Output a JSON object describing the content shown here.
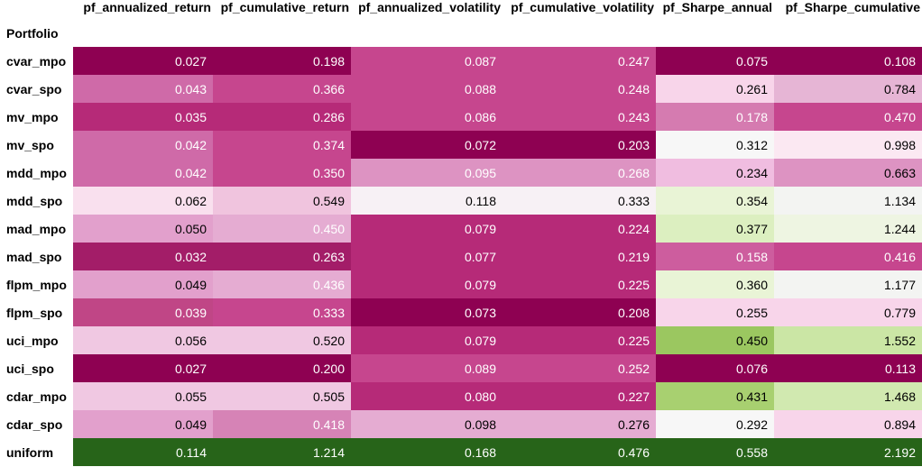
{
  "table": {
    "index_header": "Portfolio",
    "columns": [
      "pf_annualized_return",
      "pf_cumulative_return",
      "pf_annualized_volatility",
      "pf_cumulative_volatility",
      "pf_Sharpe_annual",
      "pf_Sharpe_cumulative"
    ],
    "rows": [
      {
        "name": "cvar_mpo",
        "values": [
          "0.027",
          "0.198",
          "0.087",
          "0.247",
          "0.075",
          "0.108"
        ],
        "colors": [
          "#8e0152",
          "#8e0152",
          "#c6468e",
          "#c6468e",
          "#8e0152",
          "#8e0152"
        ],
        "text": [
          "#fff",
          "#fff",
          "#fff",
          "#fff",
          "#fff",
          "#fff"
        ]
      },
      {
        "name": "cvar_spo",
        "values": [
          "0.043",
          "0.366",
          "0.088",
          "0.248",
          "0.261",
          "0.784"
        ],
        "colors": [
          "#cf6aa8",
          "#c6468e",
          "#c6468e",
          "#c6468e",
          "#f8d5ea",
          "#e6b5d5"
        ],
        "text": [
          "#fff",
          "#fff",
          "#fff",
          "#fff",
          "#000",
          "#000"
        ]
      },
      {
        "name": "mv_mpo",
        "values": [
          "0.035",
          "0.286",
          "0.086",
          "0.243",
          "0.178",
          "0.470"
        ],
        "colors": [
          "#b62a78",
          "#b62a78",
          "#c6468e",
          "#c6468e",
          "#d57bb0",
          "#c6468e"
        ],
        "text": [
          "#fff",
          "#fff",
          "#fff",
          "#fff",
          "#fff",
          "#fff"
        ]
      },
      {
        "name": "mv_spo",
        "values": [
          "0.042",
          "0.374",
          "0.072",
          "0.203",
          "0.312",
          "0.998"
        ],
        "colors": [
          "#cf6aa8",
          "#c6468e",
          "#8e0152",
          "#8e0152",
          "#f7f7f7",
          "#fbe8f2"
        ],
        "text": [
          "#fff",
          "#fff",
          "#fff",
          "#fff",
          "#000",
          "#000"
        ]
      },
      {
        "name": "mdd_mpo",
        "values": [
          "0.042",
          "0.350",
          "0.095",
          "0.268",
          "0.234",
          "0.663"
        ],
        "colors": [
          "#cf6aa8",
          "#c6468e",
          "#dd93c2",
          "#dd93c2",
          "#f0bde0",
          "#dd93c2"
        ],
        "text": [
          "#fff",
          "#fff",
          "#fff",
          "#fff",
          "#000",
          "#000"
        ]
      },
      {
        "name": "mdd_spo",
        "values": [
          "0.062",
          "0.549",
          "0.118",
          "0.333",
          "0.354",
          "1.134"
        ],
        "colors": [
          "#f9e0ee",
          "#f0c4de",
          "#f7f1f5",
          "#f7f1f5",
          "#e9f4d6",
          "#f3f4f2"
        ],
        "text": [
          "#000",
          "#000",
          "#000",
          "#000",
          "#000",
          "#000"
        ]
      },
      {
        "name": "mad_mpo",
        "values": [
          "0.050",
          "0.450",
          "0.079",
          "0.224",
          "0.377",
          "1.244"
        ],
        "colors": [
          "#e2a0cc",
          "#e5acd2",
          "#b62a78",
          "#b62a78",
          "#dcefc0",
          "#eef5e2"
        ],
        "text": [
          "#000",
          "#fff",
          "#fff",
          "#fff",
          "#000",
          "#000"
        ]
      },
      {
        "name": "mad_spo",
        "values": [
          "0.032",
          "0.263",
          "0.077",
          "0.219",
          "0.158",
          "0.416"
        ],
        "colors": [
          "#a31d68",
          "#a31d68",
          "#b62a78",
          "#b62a78",
          "#cd5d9e",
          "#c6468e"
        ],
        "text": [
          "#fff",
          "#fff",
          "#fff",
          "#fff",
          "#fff",
          "#fff"
        ]
      },
      {
        "name": "flpm_mpo",
        "values": [
          "0.049",
          "0.436",
          "0.079",
          "0.225",
          "0.360",
          "1.177"
        ],
        "colors": [
          "#e2a0cc",
          "#e5acd2",
          "#b62a78",
          "#b62a78",
          "#e9f4d6",
          "#f3f4f2"
        ],
        "text": [
          "#000",
          "#fff",
          "#fff",
          "#fff",
          "#000",
          "#000"
        ]
      },
      {
        "name": "flpm_spo",
        "values": [
          "0.039",
          "0.333",
          "0.073",
          "0.208",
          "0.255",
          "0.779"
        ],
        "colors": [
          "#c04686",
          "#c6468e",
          "#8e0152",
          "#8e0152",
          "#f8d5ea",
          "#f8d5ea"
        ],
        "text": [
          "#fff",
          "#fff",
          "#fff",
          "#fff",
          "#000",
          "#000"
        ]
      },
      {
        "name": "uci_mpo",
        "values": [
          "0.056",
          "0.520",
          "0.079",
          "0.225",
          "0.450",
          "1.552"
        ],
        "colors": [
          "#f0c8e2",
          "#f0c8e2",
          "#b62a78",
          "#b62a78",
          "#9bc760",
          "#cbe6a5"
        ],
        "text": [
          "#000",
          "#000",
          "#fff",
          "#fff",
          "#000",
          "#000"
        ]
      },
      {
        "name": "uci_spo",
        "values": [
          "0.027",
          "0.200",
          "0.089",
          "0.252",
          "0.076",
          "0.113"
        ],
        "colors": [
          "#8e0152",
          "#8e0152",
          "#c6468e",
          "#c6468e",
          "#8e0152",
          "#8e0152"
        ],
        "text": [
          "#fff",
          "#fff",
          "#fff",
          "#fff",
          "#fff",
          "#fff"
        ]
      },
      {
        "name": "cdar_mpo",
        "values": [
          "0.055",
          "0.505",
          "0.080",
          "0.227",
          "0.431",
          "1.468"
        ],
        "colors": [
          "#f0c8e2",
          "#f0c8e2",
          "#b62a78",
          "#b62a78",
          "#a8d070",
          "#d1e9b0"
        ],
        "text": [
          "#000",
          "#000",
          "#fff",
          "#fff",
          "#000",
          "#000"
        ]
      },
      {
        "name": "cdar_spo",
        "values": [
          "0.049",
          "0.418",
          "0.098",
          "0.276",
          "0.292",
          "0.894"
        ],
        "colors": [
          "#e2a0cc",
          "#d683b6",
          "#e5acd2",
          "#e5acd2",
          "#f7f7f7",
          "#f8d5ea"
        ],
        "text": [
          "#000",
          "#fff",
          "#000",
          "#000",
          "#000",
          "#000"
        ]
      },
      {
        "name": "uniform",
        "values": [
          "0.114",
          "1.214",
          "0.168",
          "0.476",
          "0.558",
          "2.192"
        ],
        "colors": [
          "#276419",
          "#276419",
          "#276419",
          "#276419",
          "#276419",
          "#276419"
        ],
        "text": [
          "#fff",
          "#fff",
          "#fff",
          "#fff",
          "#fff",
          "#fff"
        ]
      }
    ]
  }
}
